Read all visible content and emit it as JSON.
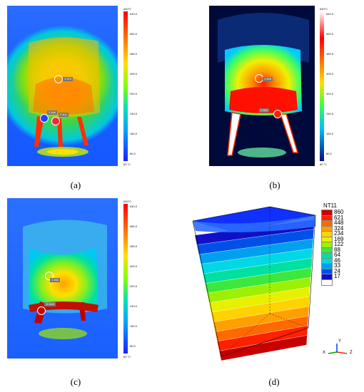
{
  "panels": {
    "a": {
      "caption": "(a)",
      "scale_top": "640°C",
      "scale_bottom": "60 °C",
      "ticks": [
        "640.0",
        "560.0",
        "480.0",
        "400.0",
        "320.0",
        "240.0",
        "160.0",
        "80.0"
      ],
      "markers": [
        "1 570",
        "2 4u6",
        "3 4u1"
      ]
    },
    "b": {
      "caption": "(b)",
      "scale_top": "640°C",
      "scale_bottom": "60 °C",
      "ticks": [
        "640.0",
        "560.0",
        "480.0",
        "400.0",
        "320.0",
        "240.0",
        "160.0",
        "80.0"
      ],
      "markers": [
        "1 545",
        "2 664"
      ]
    },
    "c": {
      "caption": "(c)",
      "scale_top": "640°C",
      "scale_bottom": "60 °C",
      "ticks": [
        "640.0",
        "560.0",
        "480.0",
        "400.0",
        "320.0",
        "240.0",
        "160.0",
        "80.0"
      ],
      "markers": [
        "1 460",
        "11 644"
      ]
    },
    "d": {
      "caption": "(d)",
      "legend_title": "NT11",
      "legend_values": [
        "860",
        "621",
        "448",
        "324",
        "234",
        "169",
        "122",
        "88",
        "64",
        "46",
        "33",
        "24",
        "17"
      ],
      "legend_colors": [
        "#c80000",
        "#ff2000",
        "#ff6a00",
        "#ffa000",
        "#ffd200",
        "#e8f000",
        "#9cf000",
        "#3ce83c",
        "#00e0a0",
        "#00d8e6",
        "#00a0f0",
        "#0050e8",
        "#1010c8",
        "#ffffff"
      ],
      "triad": [
        "X",
        "Y",
        "Z"
      ]
    }
  }
}
